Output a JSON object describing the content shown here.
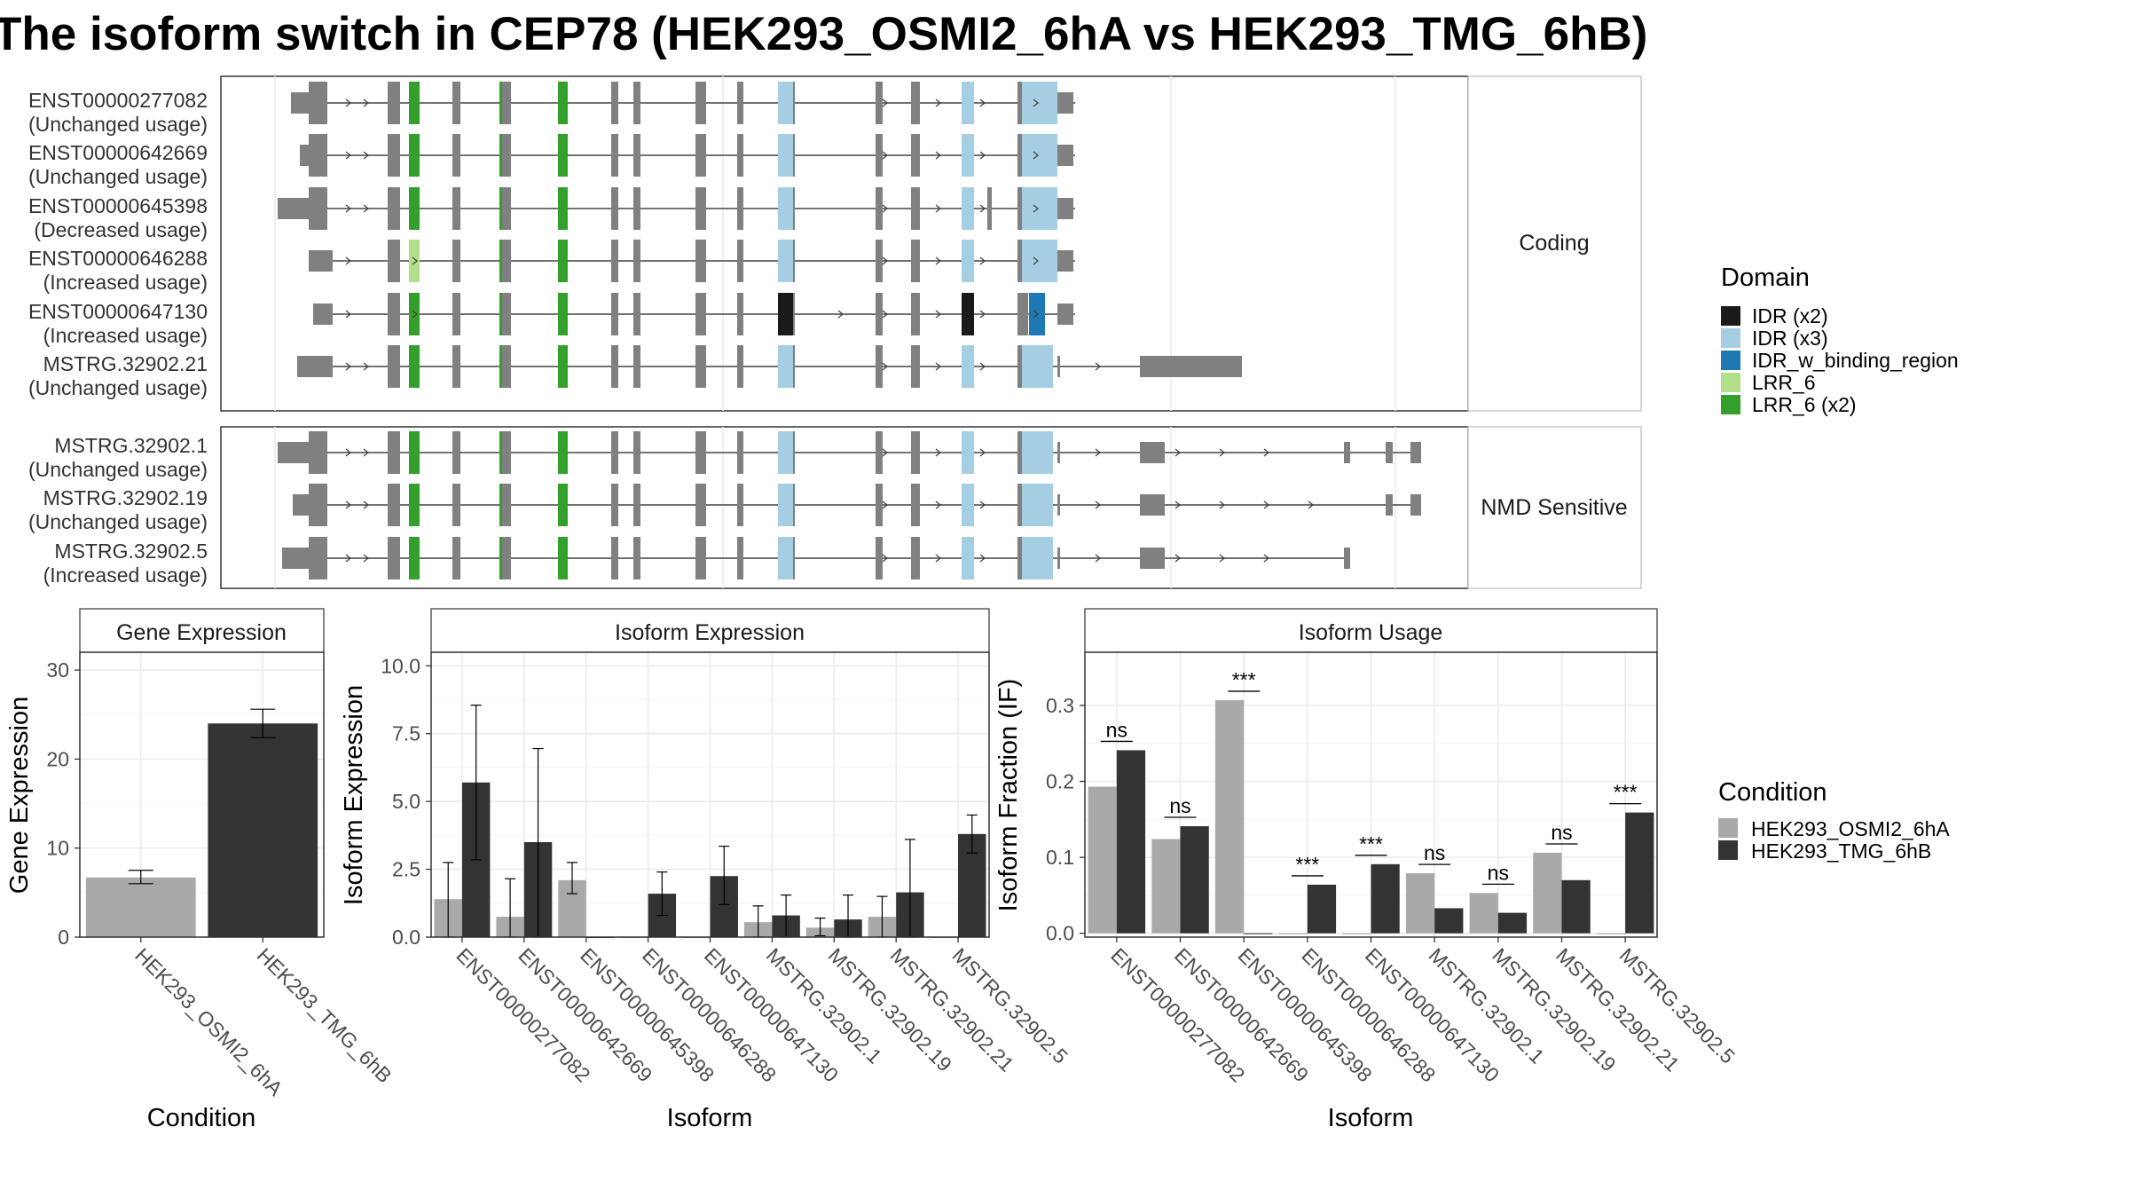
{
  "title": "The isoform switch in CEP78 (HEK293_OSMI2_6hA vs HEK293_TMG_6hB)",
  "colors": {
    "intron": "#444444",
    "exon": "#808080",
    "cond1": "#a9a9a9",
    "cond2": "#333333",
    "grid": "#ebebeb",
    "strip_bg": "#ffffff",
    "panel_border": "#333333"
  },
  "structure": {
    "panels": [
      {
        "label": "Coding",
        "transcripts": [
          {
            "id": "ENST00000277082",
            "usage": "(Unchanged usage)"
          },
          {
            "id": "ENST00000642669",
            "usage": "(Unchanged usage)"
          },
          {
            "id": "ENST00000645398",
            "usage": "(Decreased usage)"
          },
          {
            "id": "ENST00000646288",
            "usage": "(Increased usage)"
          },
          {
            "id": "ENST00000647130",
            "usage": "(Increased usage)"
          },
          {
            "id": "MSTRG.32902.21",
            "usage": "(Unchanged usage)"
          }
        ]
      },
      {
        "label": "NMD Sensitive",
        "transcripts": [
          {
            "id": "MSTRG.32902.1",
            "usage": "(Unchanged usage)"
          },
          {
            "id": "MSTRG.32902.19",
            "usage": "(Unchanged usage)"
          },
          {
            "id": "MSTRG.32902.5",
            "usage": "(Increased usage)"
          }
        ]
      }
    ]
  },
  "domain_legend": {
    "title": "Domain",
    "items": [
      {
        "label": "IDR (x2)",
        "color": "#1a1a1a"
      },
      {
        "label": "IDR (x3)",
        "color": "#a6cee3"
      },
      {
        "label": "IDR_w_binding_region",
        "color": "#1f78b4"
      },
      {
        "label": "LRR_6",
        "color": "#b2df8a"
      },
      {
        "label": "LRR_6 (x2)",
        "color": "#33a02c"
      }
    ]
  },
  "condition_legend": {
    "title": "Condition",
    "items": [
      {
        "label": "HEK293_OSMI2_6hA",
        "color": "#a9a9a9"
      },
      {
        "label": "HEK293_TMG_6hB",
        "color": "#333333"
      }
    ]
  },
  "chart_data": [
    {
      "type": "bar",
      "title": "Gene Expression",
      "xlabel": "Condition",
      "ylabel": "Gene Expression",
      "ylim": [
        0,
        32
      ],
      "yticks": [
        "0",
        "10",
        "20",
        "30"
      ],
      "categories": [
        "HEK293_OSMI2_6hA",
        "HEK293_TMG_6hB"
      ],
      "values": [
        6.7,
        24.0
      ],
      "error": [
        [
          6.0,
          7.5
        ],
        [
          22.4,
          25.6
        ]
      ]
    },
    {
      "type": "bar",
      "title": "Isoform Expression",
      "xlabel": "Isoform",
      "ylabel": "Isoform Expression",
      "ylim": [
        0,
        10.5
      ],
      "yticks": [
        "0.0",
        "2.5",
        "5.0",
        "7.5",
        "10.0"
      ],
      "categories": [
        "ENST00000277082",
        "ENST00000642669",
        "ENST00000645398",
        "ENST00000646288",
        "ENST00000647130",
        "MSTRG.32902.1",
        "MSTRG.32902.19",
        "MSTRG.32902.21",
        "MSTRG.32902.5"
      ],
      "series": [
        {
          "name": "HEK293_OSMI2_6hA",
          "values": [
            1.4,
            0.75,
            2.1,
            0.0,
            0.0,
            0.55,
            0.35,
            0.75,
            0.0
          ],
          "error": [
            [
              0.0,
              2.75
            ],
            [
              0.0,
              2.15
            ],
            [
              1.6,
              2.75
            ],
            null,
            null,
            [
              0.0,
              1.15
            ],
            [
              0.05,
              0.7
            ],
            [
              0.0,
              1.5
            ],
            null
          ]
        },
        {
          "name": "HEK293_TMG_6hB",
          "values": [
            5.7,
            3.5,
            0.0,
            1.6,
            2.25,
            0.8,
            0.65,
            1.65,
            3.8
          ],
          "error": [
            [
              2.85,
              8.55
            ],
            [
              0.0,
              6.95
            ],
            null,
            [
              0.8,
              2.4
            ],
            [
              1.2,
              3.35
            ],
            [
              0.0,
              1.55
            ],
            [
              0.0,
              1.55
            ],
            [
              0.0,
              3.6
            ],
            [
              3.1,
              4.5
            ]
          ]
        }
      ]
    },
    {
      "type": "bar",
      "title": "Isoform Usage",
      "xlabel": "Isoform",
      "ylabel": "Isoform Fraction (IF)",
      "ylim": [
        -0.005,
        0.37
      ],
      "yticks": [
        "0.0",
        "0.1",
        "0.2",
        "0.3"
      ],
      "categories": [
        "ENST00000277082",
        "ENST00000642669",
        "ENST00000645398",
        "ENST00000646288",
        "ENST00000647130",
        "MSTRG.32902.1",
        "MSTRG.32902.19",
        "MSTRG.32902.21",
        "MSTRG.32902.5"
      ],
      "series": [
        {
          "name": "HEK293_OSMI2_6hA",
          "values": [
            0.193,
            0.124,
            0.307,
            0.0,
            0.0,
            0.079,
            0.053,
            0.106,
            0.0
          ]
        },
        {
          "name": "HEK293_TMG_6hB",
          "values": [
            0.241,
            0.141,
            0.0,
            0.064,
            0.091,
            0.033,
            0.027,
            0.07,
            0.159
          ]
        }
      ],
      "significance": [
        "ns",
        "ns",
        "***",
        "***",
        "***",
        "ns",
        "ns",
        "ns",
        "***"
      ]
    }
  ]
}
